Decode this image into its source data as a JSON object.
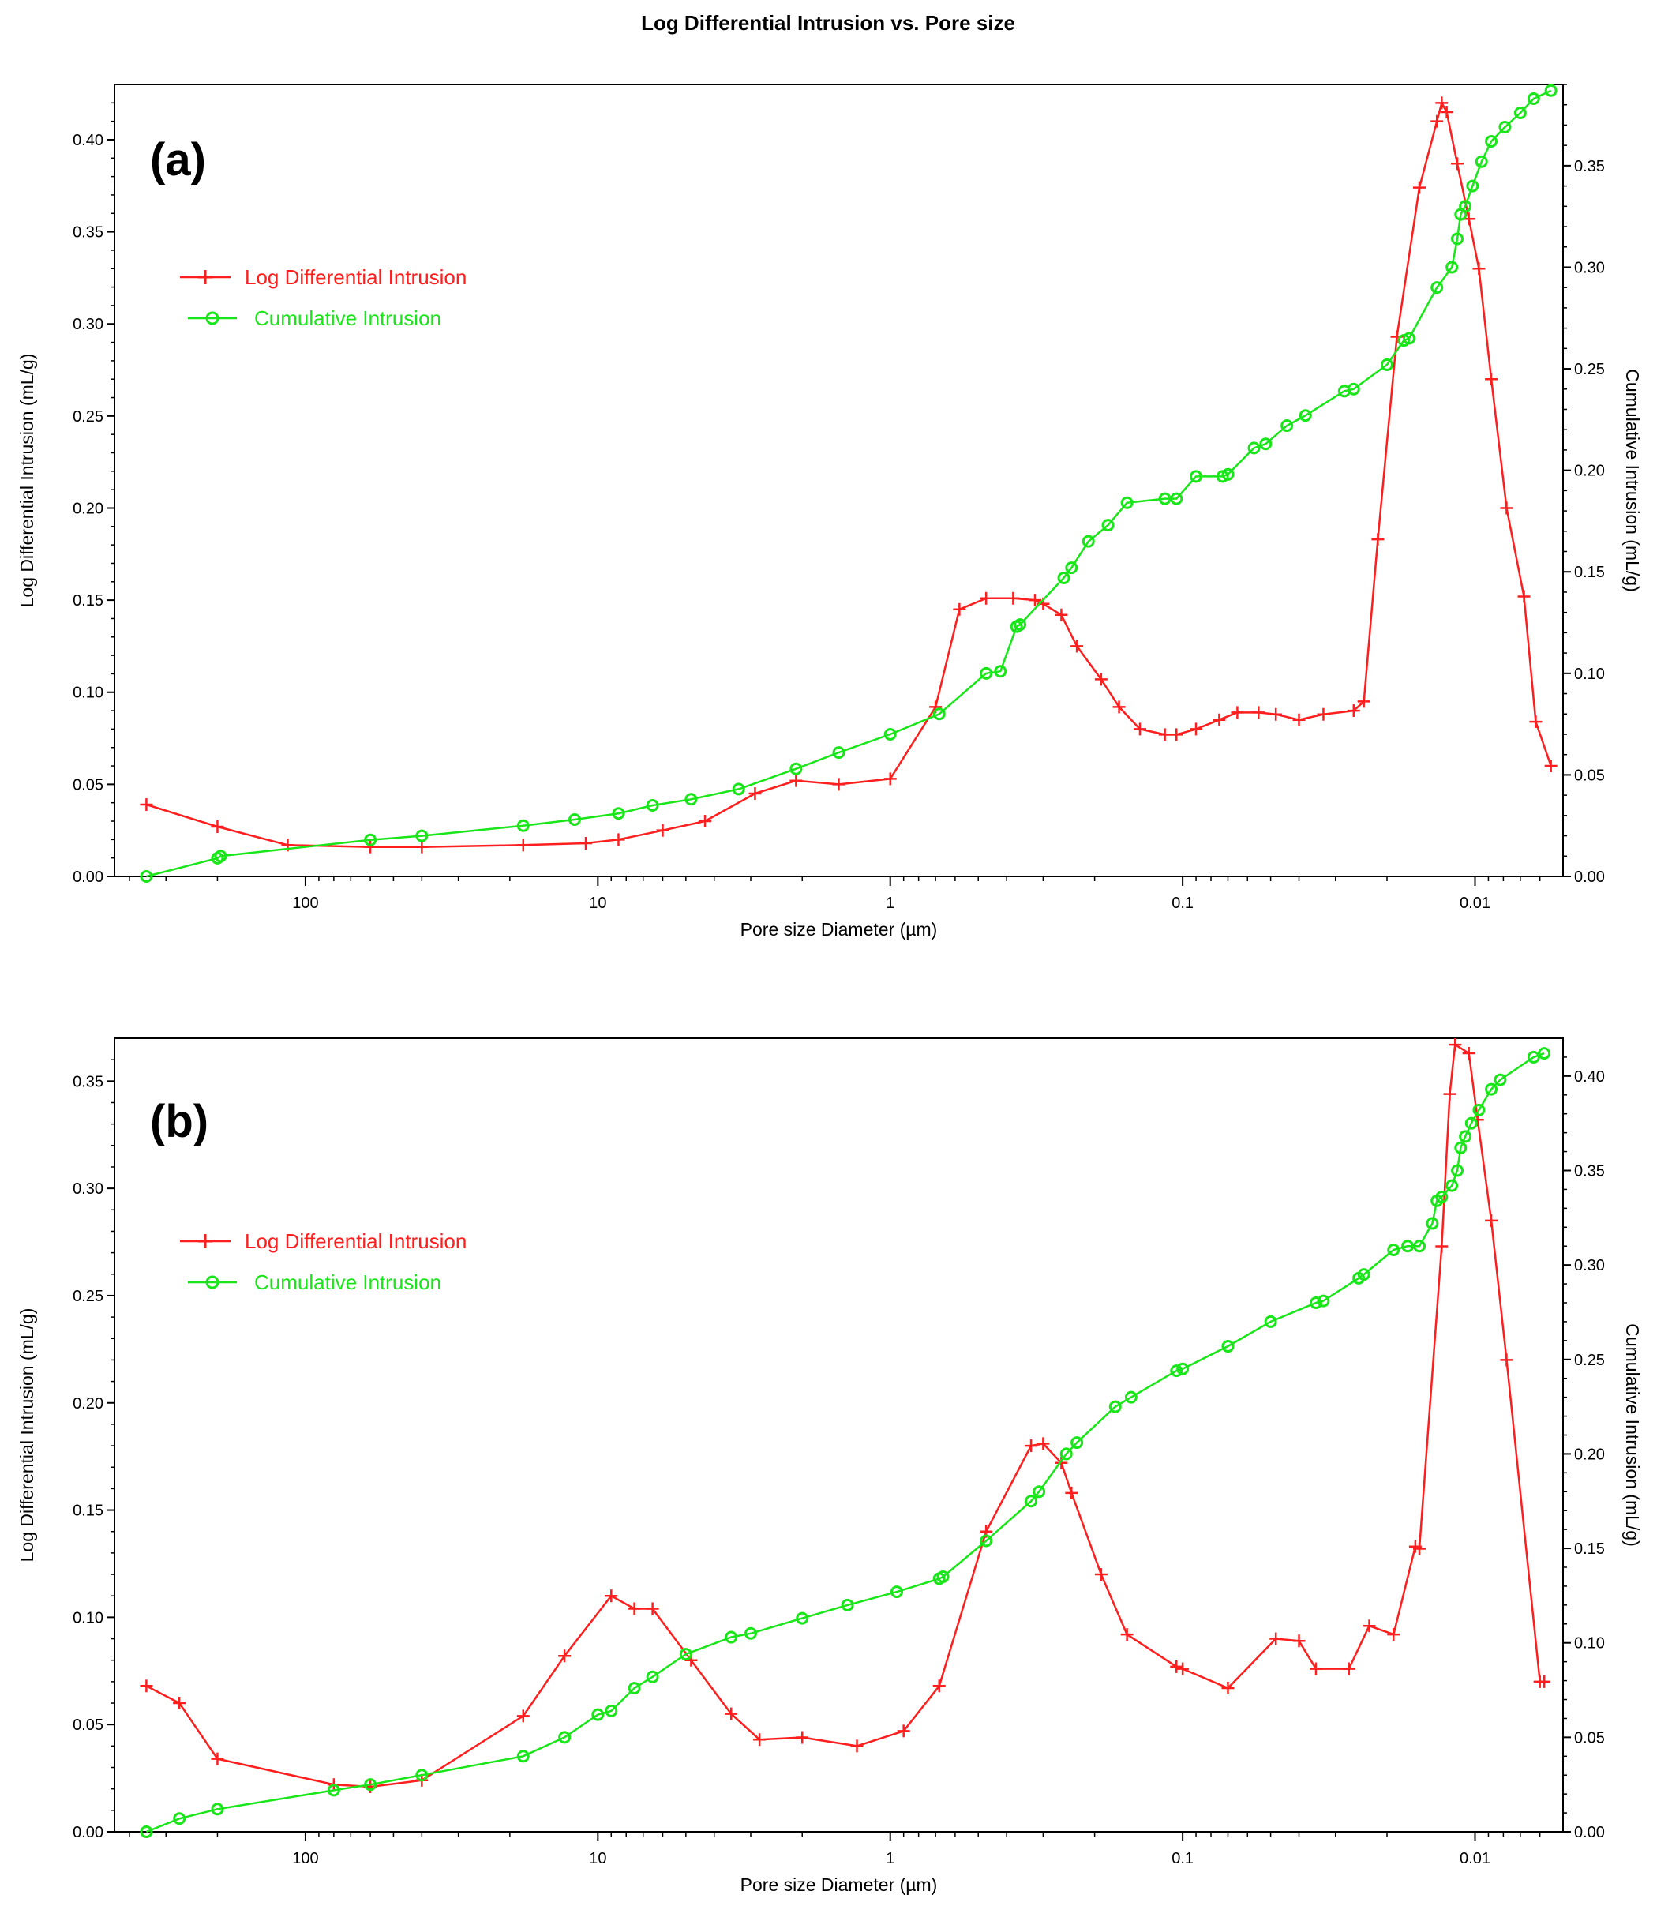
{
  "title": "Log Differential Intrusion vs. Pore size",
  "colors": {
    "log": "#ff1e1e",
    "cum": "#19e619",
    "axis": "#000000"
  },
  "chart_data": [
    {
      "panel": "(a)",
      "type": "line",
      "xlabel": "Pore size Diameter (µm)",
      "ylabel": "Log Differential Intrusion (mL/g)",
      "y2label": "Cumulative Intrusion (mL/g)",
      "xscale": "log",
      "xreversed": true,
      "xlim": [
        450,
        0.005
      ],
      "xticks": [
        "100",
        "10",
        "1",
        "0.1",
        "0.01"
      ],
      "ylim": [
        0,
        0.43
      ],
      "yticks": [
        "0.00",
        "0.05",
        "0.10",
        "0.15",
        "0.20",
        "0.25",
        "0.30",
        "0.35",
        "0.40"
      ],
      "y2lim": [
        0,
        0.39
      ],
      "y2ticks": [
        "0.00",
        "0.05",
        "0.10",
        "0.15",
        "0.20",
        "0.25",
        "0.30",
        "0.35"
      ],
      "legend": [
        "Log Differential Intrusion",
        "Cumulative Intrusion"
      ],
      "series": [
        {
          "name": "Log Differential Intrusion",
          "axis": "left",
          "x": [
            350,
            200,
            115,
            60,
            40,
            18,
            11,
            8.5,
            6,
            4.3,
            2.9,
            2.1,
            1.5,
            1.0,
            0.7,
            0.58,
            0.47,
            0.38,
            0.32,
            0.3,
            0.26,
            0.23,
            0.19,
            0.165,
            0.14,
            0.115,
            0.105,
            0.09,
            0.075,
            0.065,
            0.055,
            0.048,
            0.04,
            0.033,
            0.026,
            0.024,
            0.0215,
            0.0185,
            0.0155,
            0.0135,
            0.013,
            0.0125,
            0.0115,
            0.0105,
            0.0097,
            0.0088,
            0.0078,
            0.0068,
            0.0062,
            0.0055
          ],
          "values": [
            0.039,
            0.027,
            0.017,
            0.016,
            0.016,
            0.017,
            0.018,
            0.02,
            0.025,
            0.03,
            0.045,
            0.052,
            0.05,
            0.053,
            0.092,
            0.145,
            0.151,
            0.151,
            0.15,
            0.148,
            0.142,
            0.125,
            0.107,
            0.092,
            0.08,
            0.077,
            0.077,
            0.08,
            0.085,
            0.089,
            0.089,
            0.088,
            0.085,
            0.088,
            0.09,
            0.095,
            0.183,
            0.293,
            0.374,
            0.41,
            0.42,
            0.415,
            0.387,
            0.357,
            0.33,
            0.27,
            0.2,
            0.152,
            0.084,
            0.06
          ]
        },
        {
          "name": "Cumulative Intrusion",
          "axis": "right",
          "x": [
            350,
            200,
            195,
            60,
            40,
            18,
            12,
            8.5,
            6.5,
            4.8,
            3.3,
            2.1,
            1.5,
            1.0,
            0.68,
            0.47,
            0.42,
            0.37,
            0.36,
            0.255,
            0.24,
            0.21,
            0.18,
            0.155,
            0.115,
            0.105,
            0.09,
            0.073,
            0.07,
            0.057,
            0.052,
            0.044,
            0.038,
            0.028,
            0.026,
            0.02,
            0.0175,
            0.0168,
            0.0135,
            0.012,
            0.0115,
            0.0112,
            0.0108,
            0.0102,
            0.0095,
            0.0088,
            0.0079,
            0.007,
            0.0063,
            0.0055
          ],
          "values": [
            0.0,
            0.009,
            0.01,
            0.018,
            0.02,
            0.025,
            0.028,
            0.031,
            0.035,
            0.038,
            0.043,
            0.053,
            0.061,
            0.07,
            0.08,
            0.1,
            0.101,
            0.123,
            0.124,
            0.147,
            0.152,
            0.165,
            0.173,
            0.184,
            0.186,
            0.186,
            0.197,
            0.197,
            0.198,
            0.211,
            0.213,
            0.222,
            0.227,
            0.239,
            0.24,
            0.252,
            0.264,
            0.265,
            0.29,
            0.3,
            0.314,
            0.326,
            0.33,
            0.34,
            0.352,
            0.362,
            0.369,
            0.376,
            0.383,
            0.387
          ]
        }
      ]
    },
    {
      "panel": "(b)",
      "type": "line",
      "xlabel": "Pore size Diameter (µm)",
      "ylabel": "Log Differential Intrusion (mL/g)",
      "y2label": "Cumulative Intrusion (mL/g)",
      "xscale": "log",
      "xreversed": true,
      "xlim": [
        450,
        0.005
      ],
      "xticks": [
        "100",
        "10",
        "1",
        "0.1",
        "0.01"
      ],
      "ylim": [
        0,
        0.37
      ],
      "yticks": [
        "0.00",
        "0.05",
        "0.10",
        "0.15",
        "0.20",
        "0.25",
        "0.30",
        "0.35"
      ],
      "y2lim": [
        0,
        0.42
      ],
      "y2ticks": [
        "0.00",
        "0.05",
        "0.10",
        "0.15",
        "0.20",
        "0.25",
        "0.30",
        "0.35",
        "0.40"
      ],
      "legend": [
        "Log Differential Intrusion",
        "Cumulative Intrusion"
      ],
      "series": [
        {
          "name": "Log Differential Intrusion",
          "axis": "left",
          "x": [
            350,
            270,
            200,
            80,
            60,
            40,
            18,
            13,
            9,
            7.5,
            6.5,
            4.8,
            3.5,
            2.8,
            2.0,
            1.3,
            0.9,
            0.68,
            0.47,
            0.33,
            0.3,
            0.26,
            0.24,
            0.19,
            0.155,
            0.105,
            0.1,
            0.07,
            0.048,
            0.04,
            0.035,
            0.027,
            0.023,
            0.019,
            0.016,
            0.0155,
            0.013,
            0.0122,
            0.0117,
            0.0105,
            0.0098,
            0.0088,
            0.0078,
            0.006,
            0.0058
          ],
          "values": [
            0.068,
            0.06,
            0.034,
            0.022,
            0.021,
            0.024,
            0.054,
            0.082,
            0.11,
            0.104,
            0.104,
            0.08,
            0.055,
            0.043,
            0.044,
            0.04,
            0.047,
            0.068,
            0.14,
            0.18,
            0.181,
            0.172,
            0.158,
            0.12,
            0.092,
            0.077,
            0.076,
            0.067,
            0.09,
            0.089,
            0.076,
            0.076,
            0.096,
            0.092,
            0.133,
            0.132,
            0.273,
            0.344,
            0.367,
            0.363,
            0.332,
            0.285,
            0.22,
            0.07,
            0.07
          ]
        },
        {
          "name": "Cumulative Intrusion",
          "axis": "right",
          "x": [
            350,
            270,
            200,
            80,
            60,
            40,
            18,
            13,
            10,
            9,
            7.5,
            6.5,
            5.0,
            3.5,
            3.0,
            2.0,
            1.4,
            0.95,
            0.68,
            0.66,
            0.47,
            0.33,
            0.31,
            0.25,
            0.23,
            0.17,
            0.15,
            0.105,
            0.1,
            0.07,
            0.05,
            0.035,
            0.033,
            0.025,
            0.024,
            0.019,
            0.017,
            0.0155,
            0.014,
            0.0135,
            0.013,
            0.012,
            0.0115,
            0.0112,
            0.0108,
            0.0103,
            0.0097,
            0.0088,
            0.0082,
            0.0063,
            0.0058
          ],
          "values": [
            0.0,
            0.007,
            0.012,
            0.022,
            0.025,
            0.03,
            0.04,
            0.05,
            0.062,
            0.064,
            0.076,
            0.082,
            0.094,
            0.103,
            0.105,
            0.113,
            0.12,
            0.127,
            0.134,
            0.135,
            0.154,
            0.175,
            0.18,
            0.2,
            0.206,
            0.225,
            0.23,
            0.244,
            0.245,
            0.257,
            0.27,
            0.28,
            0.281,
            0.293,
            0.295,
            0.308,
            0.31,
            0.31,
            0.322,
            0.334,
            0.336,
            0.342,
            0.35,
            0.362,
            0.368,
            0.375,
            0.382,
            0.393,
            0.398,
            0.41,
            0.412
          ]
        }
      ]
    }
  ]
}
